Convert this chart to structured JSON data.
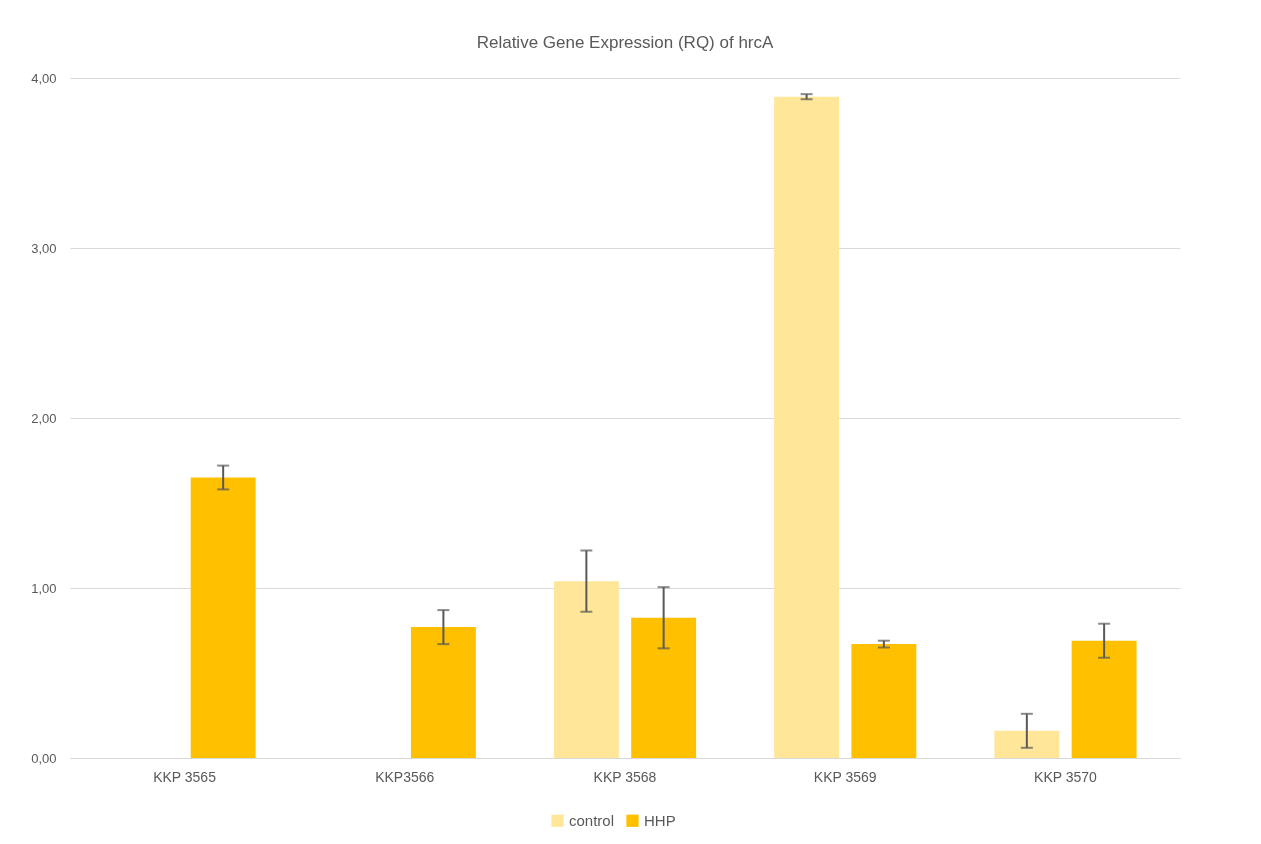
{
  "chart_data": {
    "type": "bar",
    "title": "Relative Gene Expression (RQ) of hrcA",
    "categories": [
      "KKP 3565",
      "KKP3566",
      "KKP 3568",
      "KKP 3569",
      "KKP 3570"
    ],
    "series": [
      {
        "name": "control",
        "color": "#ffe699",
        "values": [
          0,
          0,
          1.04,
          3.89,
          0.16
        ],
        "errors": [
          null,
          null,
          0.18,
          0.015,
          0.1
        ]
      },
      {
        "name": "HHP",
        "color": "#ffc000",
        "values": [
          1.65,
          0.77,
          0.825,
          0.67,
          0.69
        ],
        "errors": [
          0.07,
          0.1,
          0.18,
          0.02,
          0.1
        ]
      }
    ],
    "ylim": [
      0,
      4
    ],
    "yticks": [
      {
        "value": 0,
        "label": "0,00"
      },
      {
        "value": 1,
        "label": "1,00"
      },
      {
        "value": 2,
        "label": "2,00"
      },
      {
        "value": 3,
        "label": "3,00"
      },
      {
        "value": 4,
        "label": "4,00"
      }
    ],
    "grid": "y",
    "legend": "bottom"
  }
}
